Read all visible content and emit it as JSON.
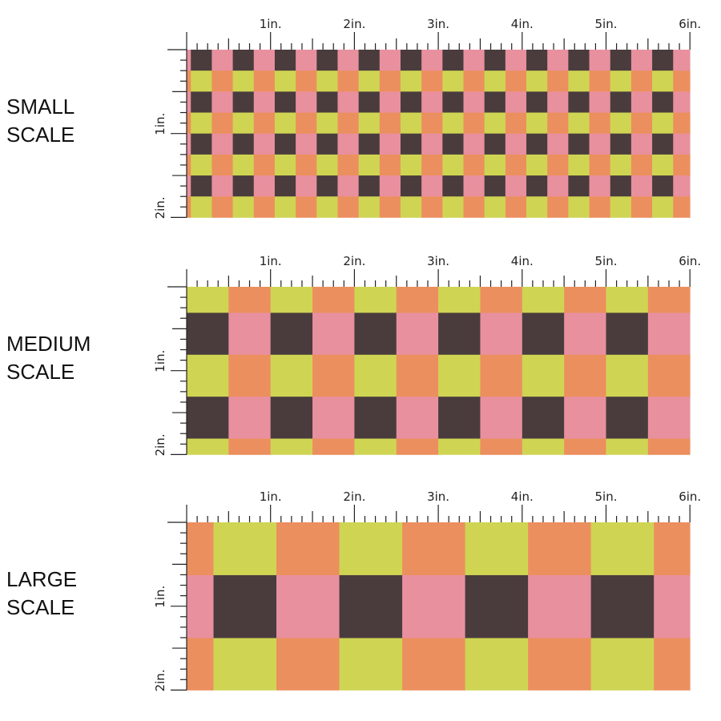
{
  "colors": {
    "pink": "#E8909E",
    "dark": "#4A3C3D",
    "orange": "#EC8F5E",
    "yellow": "#CFD553",
    "ruler": "#222222"
  },
  "ruler": {
    "horizontal_labels": [
      "1in.",
      "2in.",
      "3in.",
      "4in.",
      "5in.",
      "6in."
    ],
    "vertical_labels": [
      "1in.",
      "2in."
    ]
  },
  "sections": [
    {
      "id": "small",
      "label_line1": "SMALL",
      "label_line2": "SCALE",
      "check_size_in": 0.25,
      "col_offset_in": 0.05,
      "row_offset_in": 0.0,
      "first_row": "pink-dark",
      "first_col": "light"
    },
    {
      "id": "medium",
      "label_line1": "MEDIUM",
      "label_line2": "SCALE",
      "check_size_in": 0.5,
      "col_offset_in": 0.0,
      "row_offset_in": 0.31,
      "first_row": "yellow-orange",
      "first_col": "dark"
    },
    {
      "id": "large",
      "label_line1": "LARGE",
      "label_line2": "SCALE",
      "check_size_in": 0.75,
      "col_offset_in": 0.32,
      "row_offset_in": 0.63,
      "first_row": "orange-yellow",
      "first_col": "light"
    }
  ]
}
